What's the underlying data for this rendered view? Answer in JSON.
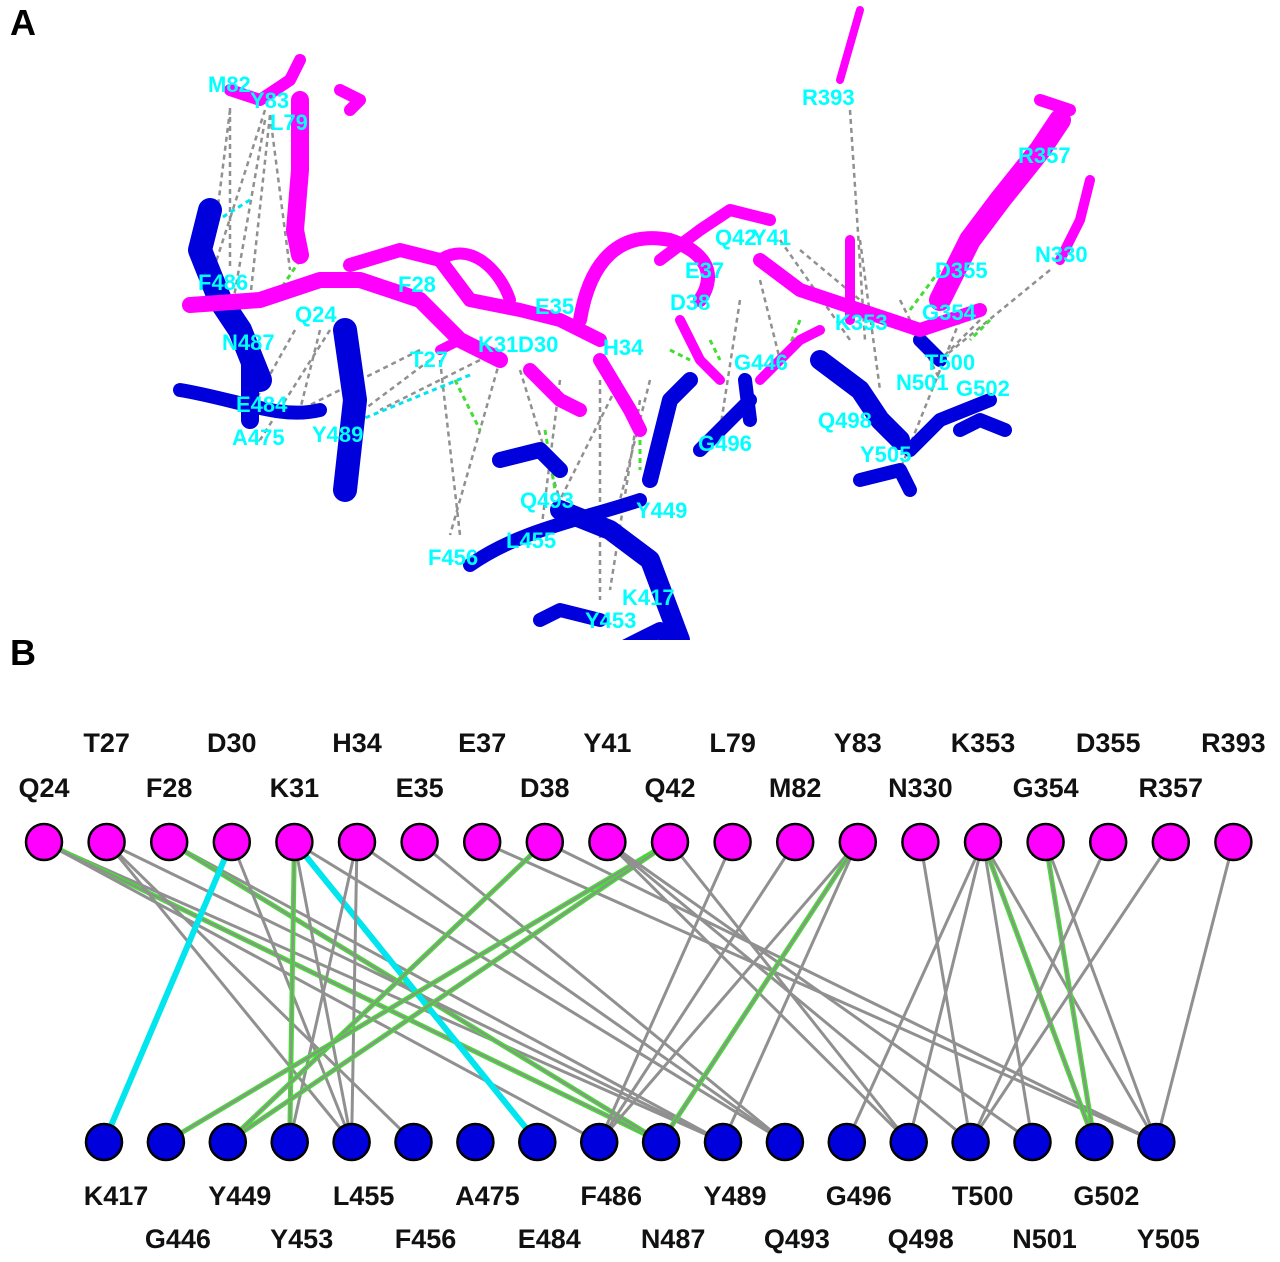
{
  "panels": {
    "a_label": "A",
    "b_label": "B"
  },
  "colors": {
    "ace2": "#ff00ff",
    "spike": "#0000dd",
    "label_3d": "#00ffff",
    "hydrogen_bond": "#44dd33",
    "salt_bridge": "#00e5ee",
    "nonbonded": "#909090"
  },
  "structure_view": {
    "ace2_residue_labels": [
      "M82",
      "Y83",
      "L79",
      "R393",
      "R357",
      "Q42",
      "Y41",
      "N330",
      "E37",
      "D355",
      "F28",
      "D38",
      "F486",
      "Q24",
      "E35",
      "K353",
      "G354",
      "K31",
      "D30",
      "N487",
      "H34",
      "T27"
    ],
    "spike_residue_labels": [
      "T500",
      "G446",
      "N501",
      "G502",
      "E484",
      "Q498",
      "A475",
      "Y489",
      "G496",
      "Y505",
      "Q493",
      "Y449",
      "L455",
      "F456",
      "K417",
      "Y453"
    ]
  },
  "network": {
    "ace2_top_row": [
      "T27",
      "D30",
      "H34",
      "E37",
      "Y41",
      "L79",
      "Y83",
      "K353",
      "D355",
      "R393"
    ],
    "ace2_bottom_row": [
      "Q24",
      "F28",
      "K31",
      "E35",
      "D38",
      "Q42",
      "M82",
      "N330",
      "G354",
      "R357"
    ],
    "ace2_nodes": [
      "Q24",
      "T27",
      "F28",
      "D30",
      "K31",
      "H34",
      "E35",
      "E37",
      "D38",
      "Y41",
      "Q42",
      "L79",
      "M82",
      "Y83",
      "N330",
      "K353",
      "G354",
      "D355",
      "R357",
      "R393"
    ],
    "spike_top_row": [
      "K417",
      "Y449",
      "L455",
      "A475",
      "F486",
      "Y489",
      "G496",
      "T500",
      "G502"
    ],
    "spike_bottom_row": [
      "G446",
      "Y453",
      "F456",
      "E484",
      "N487",
      "Q493",
      "Q498",
      "N501",
      "Y505"
    ],
    "spike_nodes": [
      "K417",
      "G446",
      "Y449",
      "Y453",
      "L455",
      "F456",
      "A475",
      "E484",
      "F486",
      "N487",
      "Y489",
      "Q493",
      "G496",
      "Q498",
      "T500",
      "N501",
      "G502",
      "Y505"
    ],
    "edges": [
      [
        "Q24",
        "Y489",
        "gray"
      ],
      [
        "Q24",
        "N487",
        "hbond"
      ],
      [
        "Q24",
        "F486",
        "gray"
      ],
      [
        "F28",
        "Y489",
        "gray"
      ],
      [
        "F28",
        "N487",
        "hbond"
      ],
      [
        "T27",
        "Y489",
        "gray"
      ],
      [
        "T27",
        "F456",
        "gray"
      ],
      [
        "T27",
        "L455",
        "gray"
      ],
      [
        "D30",
        "K417",
        "salt"
      ],
      [
        "D30",
        "L455",
        "gray"
      ],
      [
        "K31",
        "E484",
        "salt"
      ],
      [
        "K31",
        "Y453",
        "hbond"
      ],
      [
        "K31",
        "Q493",
        "gray"
      ],
      [
        "K31",
        "L455",
        "gray"
      ],
      [
        "H34",
        "Y453",
        "gray"
      ],
      [
        "H34",
        "L455",
        "gray"
      ],
      [
        "H34",
        "Q493",
        "gray"
      ],
      [
        "E35",
        "Q493",
        "gray"
      ],
      [
        "E37",
        "Y505",
        "gray"
      ],
      [
        "D38",
        "Y449",
        "hbond"
      ],
      [
        "D38",
        "Y505",
        "gray"
      ],
      [
        "Q42",
        "G446",
        "hbond"
      ],
      [
        "Q42",
        "Y449",
        "hbond"
      ],
      [
        "Q42",
        "Q498",
        "gray"
      ],
      [
        "Y41",
        "T500",
        "gray"
      ],
      [
        "Y41",
        "N501",
        "gray"
      ],
      [
        "Y41",
        "Q498",
        "gray"
      ],
      [
        "L79",
        "F486",
        "gray"
      ],
      [
        "M82",
        "F486",
        "gray"
      ],
      [
        "Y83",
        "F486",
        "gray"
      ],
      [
        "Y83",
        "N487",
        "hbond"
      ],
      [
        "Y83",
        "Y489",
        "gray"
      ],
      [
        "N330",
        "T500",
        "gray"
      ],
      [
        "K353",
        "G496",
        "gray"
      ],
      [
        "K353",
        "Q498",
        "gray"
      ],
      [
        "K353",
        "N501",
        "gray"
      ],
      [
        "K353",
        "G502",
        "hbond"
      ],
      [
        "K353",
        "Y505",
        "gray"
      ],
      [
        "G354",
        "Y505",
        "gray"
      ],
      [
        "G354",
        "G502",
        "hbond"
      ],
      [
        "D355",
        "T500",
        "gray"
      ],
      [
        "R357",
        "T500",
        "gray"
      ],
      [
        "R393",
        "Y505",
        "gray"
      ]
    ]
  }
}
